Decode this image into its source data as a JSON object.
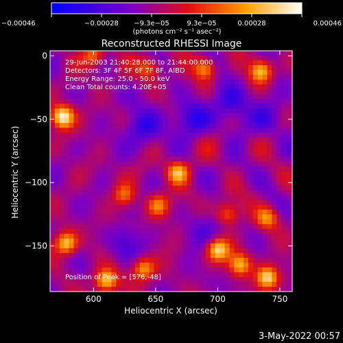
{
  "chart_data": {
    "type": "heatmap",
    "title": "Reconstructed RHESSI Image",
    "xlabel": "Heliocentric X (arcsec)",
    "ylabel": "Heliocentric Y (arcsec)",
    "xlim": [
      565,
      760
    ],
    "ylim": [
      -186,
      4
    ],
    "x_ticks": [
      600,
      650,
      700,
      750
    ],
    "x_tick_labels": [
      "600",
      "650",
      "700",
      "750"
    ],
    "y_ticks": [
      0,
      -50,
      -100,
      -150
    ],
    "y_tick_labels": [
      "0",
      "−50",
      "−100",
      "−150"
    ],
    "colorbar": {
      "range": [
        -0.00046,
        0.00046
      ],
      "tick_labels": [
        "−0.00046",
        "−0.00028",
        "−9.3e−05",
        "9.3e−05",
        "0.00028",
        "0.00046"
      ],
      "unit_label": "(photons cm⁻² s⁻¹ asec⁻²)",
      "colormap": "blue-purple-red-yellow-white"
    },
    "annotations": [
      "29-Jun-2003 21:40:28.000 to 21:44:00.000",
      "Detectors: 3F 4F 5F 6F 7F 8F, AIBD",
      "Energy Range: 25.0 - 50.0 keV",
      "Clean     Total counts: 4.20E+05",
      "Position of Peak = [576,-48]"
    ],
    "peak": {
      "x": 576,
      "y": -48
    },
    "bright_sources": [
      {
        "x": 575,
        "y": -48,
        "value": 0.00046
      },
      {
        "x": 578,
        "y": -148,
        "value": 0.00036
      },
      {
        "x": 735,
        "y": -12,
        "value": 0.00034
      },
      {
        "x": 668,
        "y": -92,
        "value": 0.0003
      },
      {
        "x": 690,
        "y": -10,
        "value": 0.00028
      },
      {
        "x": 700,
        "y": -153,
        "value": 0.00034
      },
      {
        "x": 740,
        "y": -175,
        "value": 0.00038
      },
      {
        "x": 718,
        "y": -165,
        "value": 0.0003
      },
      {
        "x": 610,
        "y": -178,
        "value": 0.00032
      },
      {
        "x": 640,
        "y": -168,
        "value": 0.00026
      },
      {
        "x": 652,
        "y": -118,
        "value": 0.00022
      },
      {
        "x": 625,
        "y": -110,
        "value": 0.00018
      },
      {
        "x": 740,
        "y": -128,
        "value": 0.00024
      },
      {
        "x": 708,
        "y": -125,
        "value": 0.00018
      },
      {
        "x": 600,
        "y": 0,
        "value": 0.0002
      },
      {
        "x": 645,
        "y": -10,
        "value": 0.00016
      }
    ],
    "dark_regions": [
      {
        "x": 640,
        "y": -55,
        "value": -0.00035
      },
      {
        "x": 680,
        "y": -50,
        "value": -0.00033
      },
      {
        "x": 710,
        "y": -35,
        "value": -0.00033
      },
      {
        "x": 740,
        "y": -50,
        "value": -0.00028
      },
      {
        "x": 625,
        "y": -145,
        "value": -0.00024
      },
      {
        "x": 690,
        "y": -140,
        "value": -0.00022
      }
    ]
  },
  "footer": {
    "timestamp": "3-May-2022 00:57"
  }
}
